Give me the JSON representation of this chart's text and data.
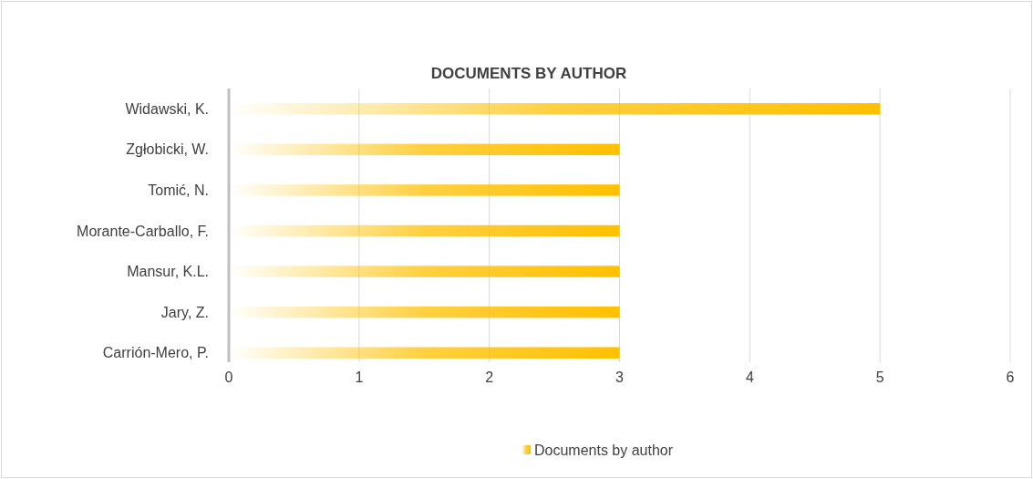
{
  "chart_data": {
    "type": "bar",
    "orientation": "horizontal",
    "title": "DOCUMENTS BY AUTHOR",
    "categories": [
      "Widawski, K.",
      "Zgłobicki, W.",
      "Tomić, N.",
      "Morante-Carballo, F.",
      "Mansur, K.L.",
      "Jary, Z.",
      "Carrión-Mero, P."
    ],
    "series": [
      {
        "name": "Documents by author",
        "color": "#ffc000",
        "values": [
          5,
          3,
          3,
          3,
          3,
          3,
          3
        ]
      }
    ],
    "xlim": [
      0,
      6
    ],
    "xticks": [
      0,
      1,
      2,
      3,
      4,
      5,
      6
    ],
    "grid": "x",
    "legend": "bottom"
  }
}
